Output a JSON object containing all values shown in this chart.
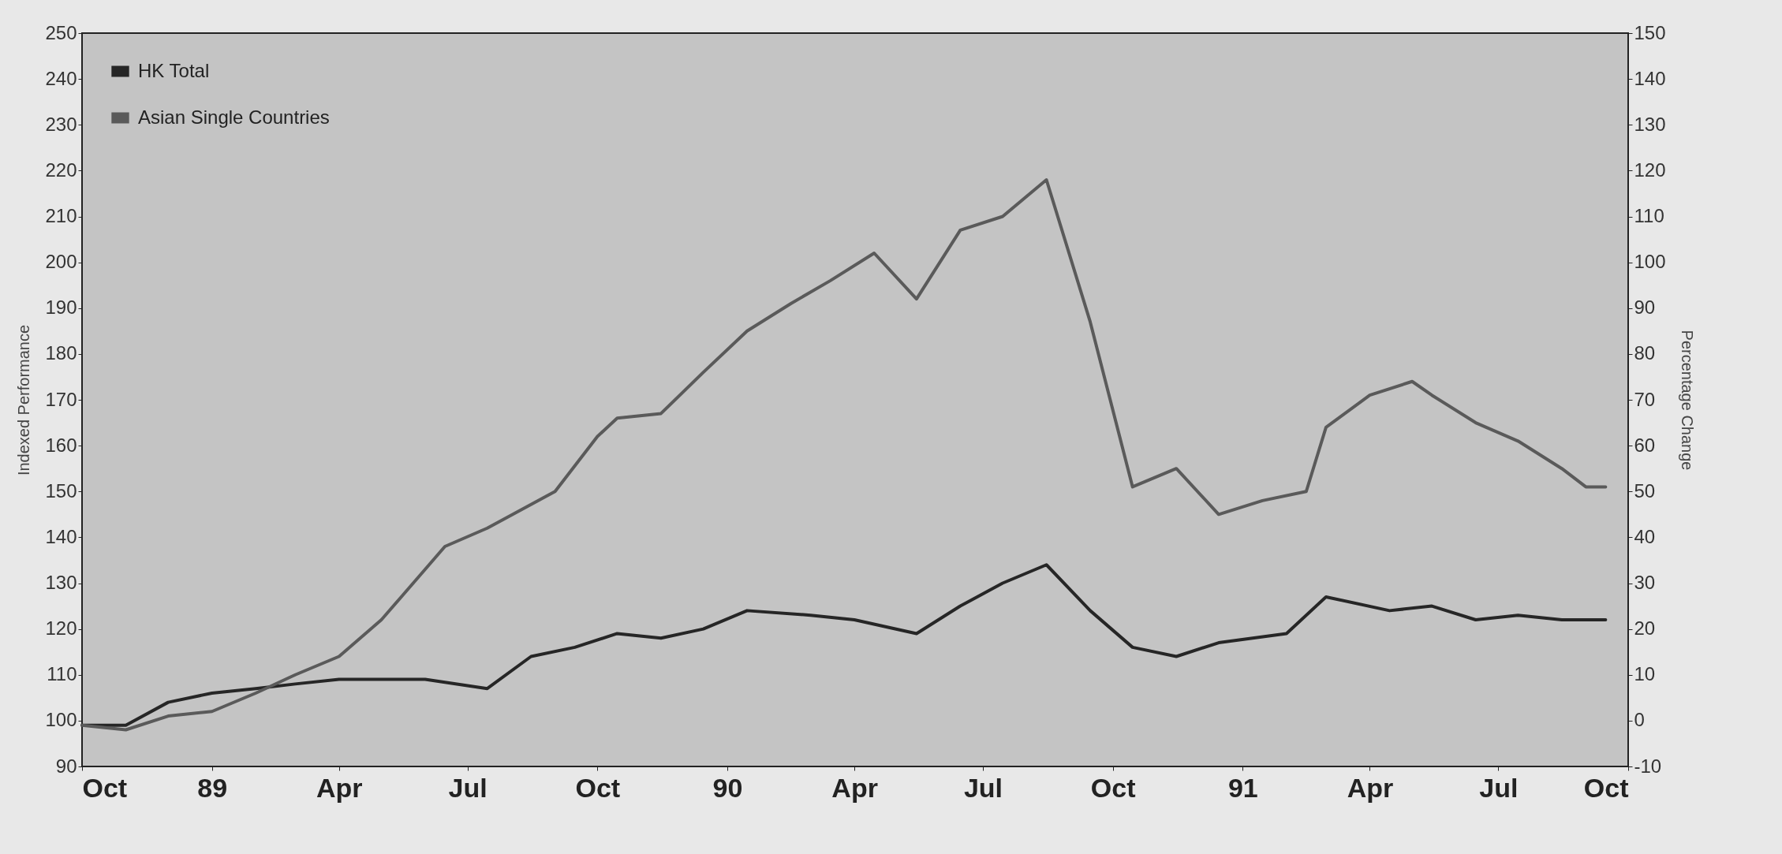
{
  "chart_data": {
    "type": "line",
    "ylabel": "Indexed Performance",
    "y2label": "Percentage Change",
    "ylim": [
      90,
      250
    ],
    "yticks": [
      90,
      100,
      110,
      120,
      130,
      140,
      150,
      160,
      170,
      180,
      190,
      200,
      210,
      220,
      230,
      240,
      250
    ],
    "y2lim": [
      -10,
      150
    ],
    "y2ticks": [
      -10,
      0,
      10,
      20,
      30,
      40,
      50,
      60,
      70,
      80,
      90,
      100,
      110,
      120,
      130,
      140,
      150
    ],
    "xlim": [
      "1988-10-01",
      "1991-10-01"
    ],
    "xticks": [
      {
        "value": "1988-10-01",
        "label": "Oct"
      },
      {
        "value": "1989-01-01",
        "label": "89"
      },
      {
        "value": "1989-04-01",
        "label": "Apr"
      },
      {
        "value": "1989-07-01",
        "label": "Jul"
      },
      {
        "value": "1989-10-01",
        "label": "Oct"
      },
      {
        "value": "1990-01-01",
        "label": "90"
      },
      {
        "value": "1990-04-01",
        "label": "Apr"
      },
      {
        "value": "1990-07-01",
        "label": "Jul"
      },
      {
        "value": "1990-10-01",
        "label": "Oct"
      },
      {
        "value": "1991-01-01",
        "label": "91"
      },
      {
        "value": "1991-04-01",
        "label": "Apr"
      },
      {
        "value": "1991-07-01",
        "label": "Jul"
      },
      {
        "value": "1991-10-01",
        "label": "Oct"
      }
    ],
    "legend": "top left",
    "grid": false,
    "marker": "none",
    "line_style": "solid",
    "series": [
      {
        "name": "HK Total",
        "color": "#262626",
        "x": [
          "1988-10-01",
          "1988-11-01",
          "1988-12-01",
          "1989-01-01",
          "1989-02-01",
          "1989-03-01",
          "1989-04-01",
          "1989-05-01",
          "1989-06-01",
          "1989-07-15",
          "1989-08-15",
          "1989-09-15",
          "1989-10-15",
          "1989-11-15",
          "1989-12-15",
          "1990-01-15",
          "1990-03-01",
          "1990-04-01",
          "1990-05-15",
          "1990-06-15",
          "1990-07-15",
          "1990-08-15",
          "1990-09-15",
          "1990-10-15",
          "1990-11-15",
          "1990-12-15",
          "1991-02-01",
          "1991-03-01",
          "1991-04-15",
          "1991-05-15",
          "1991-06-15",
          "1991-07-15",
          "1991-08-15",
          "1991-09-15"
        ],
        "values": [
          99,
          99,
          104,
          106,
          107,
          108,
          109,
          109,
          109,
          107,
          114,
          116,
          119,
          118,
          120,
          124,
          123,
          122,
          119,
          125,
          130,
          134,
          124,
          116,
          114,
          117,
          119,
          127,
          124,
          125,
          122,
          123,
          122,
          122
        ]
      },
      {
        "name": "Asian Single Countries",
        "color": "#5a5a5a",
        "x": [
          "1988-10-01",
          "1988-11-01",
          "1988-12-01",
          "1989-01-01",
          "1989-02-01",
          "1989-03-01",
          "1989-04-01",
          "1989-05-01",
          "1989-06-01",
          "1989-06-15",
          "1989-07-15",
          "1989-09-01",
          "1989-10-01",
          "1989-10-15",
          "1989-11-15",
          "1989-12-15",
          "1990-01-15",
          "1990-02-15",
          "1990-03-15",
          "1990-04-15",
          "1990-05-15",
          "1990-06-15",
          "1990-07-15",
          "1990-08-15",
          "1990-09-15",
          "1990-10-15",
          "1990-11-15",
          "1990-12-15",
          "1991-01-15",
          "1991-02-15",
          "1991-03-01",
          "1991-04-01",
          "1991-05-01",
          "1991-05-15",
          "1991-06-15",
          "1991-07-15",
          "1991-08-15",
          "1991-09-01",
          "1991-09-15"
        ],
        "values": [
          99,
          98,
          101,
          102,
          106,
          110,
          114,
          122,
          133,
          138,
          142,
          150,
          162,
          166,
          167,
          176,
          185,
          191,
          196,
          202,
          192,
          207,
          210,
          218,
          187,
          151,
          155,
          145,
          148,
          150,
          164,
          171,
          174,
          171,
          165,
          161,
          155,
          151,
          151
        ]
      }
    ]
  }
}
